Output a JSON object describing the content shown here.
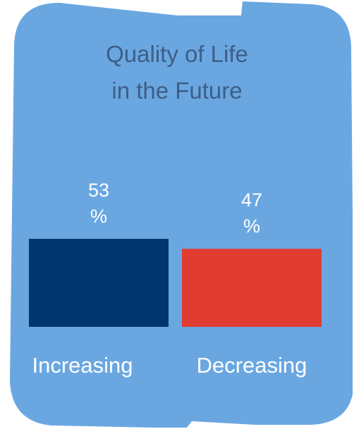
{
  "colors": {
    "card_bg": "#6aa7e1",
    "title_text": "#3d5e86",
    "label_text": "#ffffff"
  },
  "chart_data": {
    "type": "bar",
    "title_lines": [
      "Quality of Life",
      "in the Future"
    ],
    "categories": [
      "Increasing",
      "Decreasing"
    ],
    "values": [
      53,
      47
    ],
    "value_labels": [
      [
        "53",
        "%"
      ],
      [
        "47",
        "%"
      ]
    ],
    "colors": [
      "#00366e",
      "#e03c31"
    ],
    "ylim": [
      0,
      100
    ],
    "grid": false,
    "legend": "none"
  }
}
